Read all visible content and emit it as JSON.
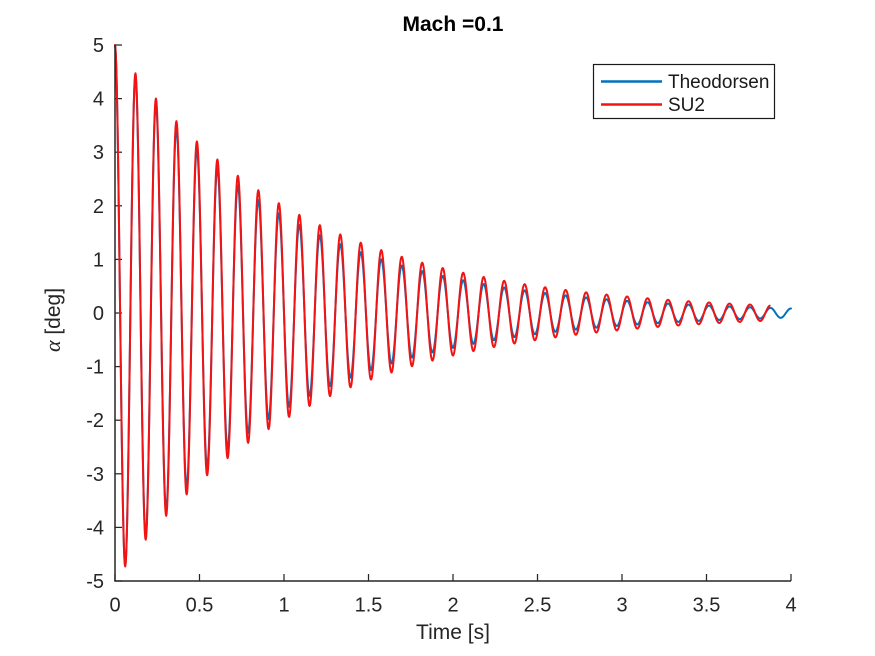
{
  "figure": {
    "background_color": "#ffffff",
    "axis_color": "#262626",
    "tick_label_color": "#262626",
    "title_color": "#000000"
  },
  "chart_data": {
    "type": "line",
    "title": "Mach =0.1",
    "xlabel": "Time [s]",
    "ylabel": "α [deg]",
    "ylabel_parts": {
      "symbol": "α",
      "units": " [deg]"
    },
    "xlim": [
      0,
      4
    ],
    "ylim": [
      -5,
      5
    ],
    "xticks": [
      0,
      0.5,
      1,
      1.5,
      2,
      2.5,
      3,
      3.5,
      4
    ],
    "xtick_labels": [
      "0",
      "0.5",
      "1",
      "1.5",
      "2",
      "2.5",
      "3",
      "3.5",
      "4"
    ],
    "yticks": [
      -5,
      -4,
      -3,
      -2,
      -1,
      0,
      1,
      2,
      3,
      4,
      5
    ],
    "ytick_labels": [
      "-5",
      "-4",
      "-3",
      "-2",
      "-1",
      "0",
      "1",
      "2",
      "3",
      "4",
      "5"
    ],
    "grid": false,
    "box": false,
    "tick_direction": "in",
    "legend": {
      "position": "top-right-inside",
      "background": "#ffffff",
      "border_color": "#1a1a1a",
      "entries": [
        "Theodorsen",
        "SU2"
      ]
    },
    "series": [
      {
        "name": "Theodorsen",
        "color": "#0072BD",
        "line_width": 2,
        "model": {
          "form": "alpha(t) = A * exp(-k*t) * cos(2*pi*f*t + phase)",
          "A_deg": 5,
          "k_per_s": 1.02,
          "f_hz": 8.25,
          "phase_rad": 0,
          "t_start_s": 0,
          "t_end_s": 4.0
        }
      },
      {
        "name": "SU2",
        "color": "#F21414",
        "line_width": 2,
        "model": {
          "form": "alpha(t) = A * exp(-k*t) * cos(2*pi*f*t + phase)",
          "A_deg": 5,
          "k_per_s": 0.92,
          "f_hz": 8.25,
          "phase_rad": 0,
          "t_start_s": 0,
          "t_end_s": 3.875
        }
      }
    ]
  }
}
